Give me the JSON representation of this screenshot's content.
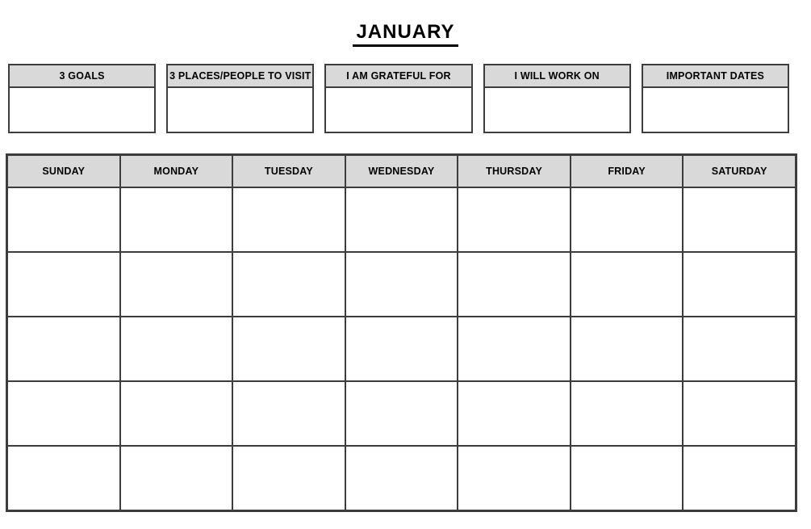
{
  "title": "JANUARY",
  "planner_boxes": [
    {
      "id": "goals",
      "label": "3 GOALS"
    },
    {
      "id": "places",
      "label": "3 PLACES/PEOPLE TO VISIT"
    },
    {
      "id": "grateful",
      "label": "I AM GRATEFUL FOR"
    },
    {
      "id": "work-on",
      "label": "I WILL WORK ON"
    },
    {
      "id": "important-dates",
      "label": "IMPORTANT DATES"
    }
  ],
  "calendar": {
    "day_headers": [
      "SUNDAY",
      "MONDAY",
      "TUESDAY",
      "WEDNESDAY",
      "THURSDAY",
      "FRIDAY",
      "SATURDAY"
    ],
    "week_rows": 5
  },
  "colors": {
    "header_fill": "#d9d9d9",
    "border": "#3d3d3d",
    "text": "#000000",
    "page_background": "#ffffff"
  }
}
